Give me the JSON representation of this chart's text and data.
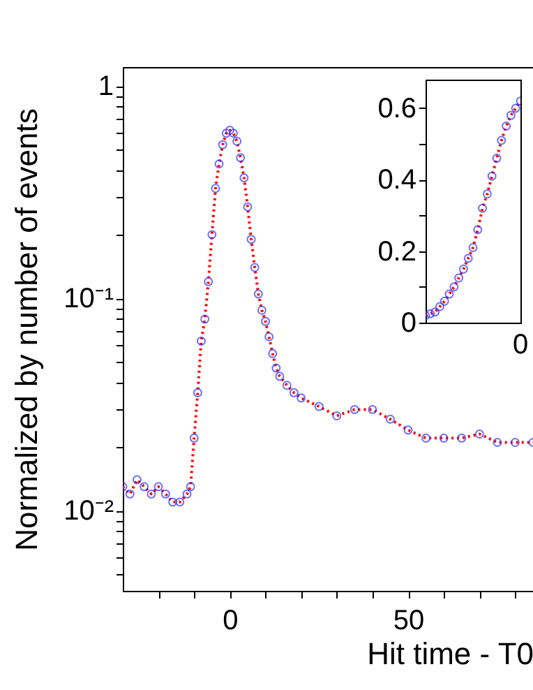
{
  "chart_data": [
    {
      "type": "scatter",
      "xlabel": "Hit time - T0",
      "ylabel": "Normalized by number of events",
      "log": "y",
      "grid": false,
      "xlim": [
        -30,
        85
      ],
      "ylim": [
        0.0042,
        1.23
      ],
      "xticks": [
        {
          "value": -20,
          "label": null
        },
        {
          "value": -10,
          "label": null
        },
        0,
        {
          "value": 10,
          "label": null
        },
        {
          "value": 20,
          "label": null
        },
        {
          "value": 30,
          "label": null
        },
        {
          "value": 40,
          "label": null
        },
        50,
        {
          "value": 60,
          "label": null
        },
        {
          "value": 70,
          "label": null
        },
        {
          "value": 80,
          "label": null
        }
      ],
      "yticks": [
        {
          "value": 0.005,
          "label": null
        },
        {
          "value": 0.006,
          "label": null
        },
        {
          "value": 0.007,
          "label": null
        },
        {
          "value": 0.008,
          "label": null
        },
        {
          "value": 0.009,
          "label": null
        },
        {
          "value": 0.01,
          "label": "10⁻²"
        },
        {
          "value": 0.02,
          "label": null
        },
        {
          "value": 0.03,
          "label": null
        },
        {
          "value": 0.04,
          "label": null
        },
        {
          "value": 0.05,
          "label": null
        },
        {
          "value": 0.06,
          "label": null
        },
        {
          "value": 0.07,
          "label": null
        },
        {
          "value": 0.08,
          "label": null
        },
        {
          "value": 0.09,
          "label": null
        },
        {
          "value": 0.1,
          "label": "10⁻¹"
        },
        {
          "value": 0.2,
          "label": null
        },
        {
          "value": 0.3,
          "label": null
        },
        {
          "value": 0.4,
          "label": null
        },
        {
          "value": 0.5,
          "label": null
        },
        {
          "value": 0.6,
          "label": null
        },
        {
          "value": 0.7,
          "label": null
        },
        {
          "value": 0.8,
          "label": null
        },
        {
          "value": 0.9,
          "label": null
        },
        1
      ],
      "x": [
        -30,
        -28,
        -26,
        -24,
        -22,
        -20,
        -18,
        -16,
        -14,
        -12,
        -11,
        -10,
        -9,
        -8,
        -7,
        -6,
        -5,
        -4,
        -3,
        -2,
        -1,
        0,
        1,
        2,
        3,
        4,
        5,
        6,
        7,
        8,
        9,
        10,
        11,
        12,
        13,
        14,
        16,
        18,
        20,
        25,
        30,
        35,
        40,
        45,
        50,
        55,
        60,
        65,
        70,
        75,
        80,
        85
      ],
      "series": [
        {
          "type": "line",
          "color": "#ff0000",
          "line_style": "dotted",
          "values": [
            0.013,
            0.012,
            0.014,
            0.013,
            0.012,
            0.013,
            0.012,
            0.011,
            0.011,
            0.012,
            0.013,
            0.022,
            0.036,
            0.063,
            0.08,
            0.12,
            0.2,
            0.33,
            0.43,
            0.53,
            0.6,
            0.62,
            0.6,
            0.55,
            0.46,
            0.37,
            0.27,
            0.19,
            0.14,
            0.105,
            0.088,
            0.078,
            0.066,
            0.055,
            0.047,
            0.043,
            0.039,
            0.036,
            0.034,
            0.031,
            0.028,
            0.03,
            0.03,
            0.027,
            0.024,
            0.022,
            0.022,
            0.022,
            0.023,
            0.021,
            0.021,
            0.021
          ]
        },
        {
          "type": "scatter",
          "color": "#3333ff",
          "marker": "circle",
          "values": [
            0.013,
            0.012,
            0.014,
            0.013,
            0.012,
            0.013,
            0.012,
            0.011,
            0.011,
            0.012,
            0.013,
            0.022,
            0.036,
            0.063,
            0.08,
            0.12,
            0.2,
            0.33,
            0.43,
            0.53,
            0.6,
            0.62,
            0.6,
            0.55,
            0.46,
            0.37,
            0.27,
            0.19,
            0.14,
            0.105,
            0.088,
            0.078,
            0.066,
            0.055,
            0.047,
            0.043,
            0.039,
            0.036,
            0.034,
            0.031,
            0.028,
            0.03,
            0.03,
            0.027,
            0.024,
            0.022,
            0.022,
            0.022,
            0.023,
            0.021,
            0.021,
            0.021
          ]
        }
      ]
    },
    {
      "type": "scatter",
      "grid": false,
      "annotations": [
        "0"
      ],
      "ylim": [
        0,
        0.68
      ],
      "yticks": [
        0,
        {
          "value": 0.1,
          "label": null
        },
        0.2,
        {
          "value": 0.3,
          "label": null
        },
        0.4,
        {
          "value": 0.5,
          "label": null
        },
        0.6
      ],
      "categories": [
        null,
        null,
        null,
        null,
        null,
        null,
        null,
        null,
        null,
        null,
        null,
        null,
        null,
        null,
        null,
        null,
        null,
        null,
        null,
        null,
        null
      ],
      "series": [
        {
          "type": "line",
          "color": "#ff0000",
          "line_style": "dotted",
          "values": [
            0.02,
            0.025,
            0.03,
            0.045,
            0.06,
            0.08,
            0.1,
            0.125,
            0.15,
            0.18,
            0.21,
            0.26,
            0.32,
            0.36,
            0.41,
            0.46,
            0.51,
            0.55,
            0.58,
            0.6,
            0.62
          ]
        },
        {
          "type": "scatter",
          "color": "#3333ff",
          "marker": "circle",
          "values": [
            0.02,
            0.025,
            0.03,
            0.045,
            0.06,
            0.08,
            0.1,
            0.125,
            0.15,
            0.18,
            0.21,
            0.26,
            0.32,
            0.36,
            0.41,
            0.46,
            0.51,
            0.55,
            0.58,
            0.6,
            0.62
          ]
        }
      ]
    }
  ]
}
